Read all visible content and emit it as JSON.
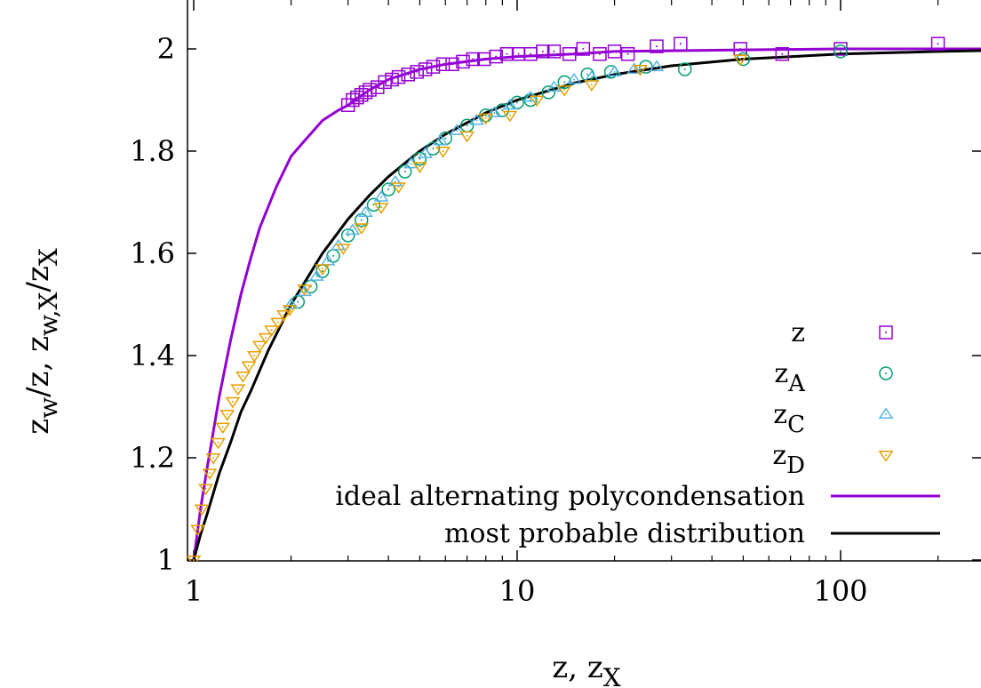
{
  "chart_data": {
    "type": "scatter",
    "title": "",
    "xlabel": {
      "main": "z, z",
      "sub": "X"
    },
    "ylabel": {
      "parts": [
        {
          "t": "z",
          "sub": "w"
        },
        {
          "t": "/z, z",
          "sub": "w,X"
        },
        {
          "t": "/z",
          "sub": "X"
        }
      ]
    },
    "x_scale": "log",
    "xlim": [
      1,
      300
    ],
    "ylim": [
      1,
      2.1
    ],
    "x_ticks": [
      {
        "value": 1,
        "label": "1"
      },
      {
        "value": 10,
        "label": "10"
      },
      {
        "value": 100,
        "label": "100"
      }
    ],
    "y_ticks": [
      {
        "value": 1,
        "label": "1"
      },
      {
        "value": 1.2,
        "label": "1.2"
      },
      {
        "value": 1.4,
        "label": "1.4"
      },
      {
        "value": 1.6,
        "label": "1.6"
      },
      {
        "value": 1.8,
        "label": "1.8"
      },
      {
        "value": 2,
        "label": "2"
      }
    ],
    "grid": false,
    "legend_position": "bottom-right",
    "series": [
      {
        "name": "z",
        "name_sub": "",
        "kind": "points",
        "marker": "square-dot",
        "color": "#9400d3",
        "x": [
          3,
          3.1,
          3.2,
          3.3,
          3.4,
          3.5,
          3.7,
          3.9,
          4.1,
          4.3,
          4.6,
          4.9,
          5.2,
          5.5,
          5.9,
          6.3,
          6.8,
          7.3,
          7.9,
          8.6,
          9.3,
          10.1,
          11,
          12,
          13,
          14.5,
          16,
          18,
          20,
          22,
          27,
          32,
          49,
          66,
          100,
          200
        ],
        "y": [
          1.89,
          1.9,
          1.905,
          1.91,
          1.915,
          1.92,
          1.925,
          1.935,
          1.94,
          1.945,
          1.95,
          1.955,
          1.96,
          1.965,
          1.97,
          1.97,
          1.975,
          1.98,
          1.98,
          1.985,
          1.99,
          1.99,
          1.99,
          1.995,
          1.995,
          1.99,
          2.0,
          1.99,
          1.995,
          1.99,
          2.005,
          2.01,
          2.0,
          1.99,
          2.0,
          2.01
        ]
      },
      {
        "name": "z",
        "name_sub": "A",
        "kind": "points",
        "marker": "circle-dot",
        "color": "#009e73",
        "x": [
          2.1,
          2.3,
          2.5,
          2.7,
          3.0,
          3.3,
          3.6,
          4.0,
          4.5,
          5.0,
          5.5,
          6.0,
          7.0,
          8.0,
          9.0,
          10,
          11,
          12.5,
          14,
          16.5,
          19.5,
          25,
          33,
          50,
          100
        ],
        "y": [
          1.505,
          1.535,
          1.565,
          1.595,
          1.635,
          1.665,
          1.695,
          1.725,
          1.76,
          1.785,
          1.805,
          1.825,
          1.85,
          1.87,
          1.88,
          1.895,
          1.9,
          1.915,
          1.935,
          1.95,
          1.955,
          1.965,
          1.96,
          1.98,
          1.995
        ]
      },
      {
        "name": "z",
        "name_sub": "C",
        "kind": "points",
        "marker": "triangle-up-dot",
        "color": "#56b4e9",
        "x": [
          2.0,
          2.2,
          2.4,
          2.6,
          2.8,
          3.1,
          3.4,
          3.8,
          4.2,
          4.7,
          5.2,
          5.8,
          6.5,
          7.5,
          8.5,
          9.5,
          11,
          13,
          15,
          17,
          20,
          23,
          27
        ],
        "y": [
          1.5,
          1.525,
          1.555,
          1.585,
          1.615,
          1.645,
          1.68,
          1.71,
          1.74,
          1.775,
          1.795,
          1.82,
          1.84,
          1.86,
          1.875,
          1.89,
          1.905,
          1.925,
          1.94,
          1.945,
          1.955,
          1.96,
          1.965
        ]
      },
      {
        "name": "z",
        "name_sub": "D",
        "kind": "points",
        "marker": "triangle-down-dot",
        "color": "#e69f00",
        "x": [
          1.0,
          1.03,
          1.06,
          1.09,
          1.12,
          1.15,
          1.19,
          1.23,
          1.27,
          1.32,
          1.37,
          1.42,
          1.48,
          1.54,
          1.6,
          1.67,
          1.74,
          1.82,
          1.9,
          1.98,
          2.2,
          2.5,
          2.9,
          3.3,
          3.8,
          4.3,
          5,
          5.9,
          7,
          8,
          9.5,
          11.5,
          14,
          17,
          24,
          49
        ],
        "y": [
          1.0,
          1.06,
          1.1,
          1.14,
          1.17,
          1.2,
          1.23,
          1.26,
          1.285,
          1.31,
          1.335,
          1.36,
          1.38,
          1.4,
          1.42,
          1.435,
          1.45,
          1.465,
          1.48,
          1.49,
          1.53,
          1.57,
          1.61,
          1.65,
          1.69,
          1.73,
          1.77,
          1.8,
          1.83,
          1.865,
          1.87,
          1.9,
          1.92,
          1.93,
          1.96,
          1.98
        ]
      },
      {
        "name": "ideal alternating polycondensation",
        "kind": "line",
        "color": "#9400d3",
        "x": [
          1,
          1.05,
          1.1,
          1.2,
          1.3,
          1.4,
          1.5,
          1.6,
          1.8,
          2,
          2.2,
          2.5,
          2.8,
          3,
          3.5,
          4,
          5,
          6,
          8,
          10,
          15,
          20,
          50,
          100,
          300
        ],
        "y": [
          1.0,
          1.1,
          1.18,
          1.32,
          1.43,
          1.52,
          1.59,
          1.65,
          1.73,
          1.79,
          1.82,
          1.86,
          1.88,
          1.89,
          1.92,
          1.94,
          1.96,
          1.97,
          1.98,
          1.985,
          1.99,
          1.995,
          1.998,
          2.0,
          2.0
        ]
      },
      {
        "name": "most probable distribution",
        "kind": "line",
        "color": "#000000",
        "x": [
          1,
          1.05,
          1.1,
          1.2,
          1.3,
          1.4,
          1.5,
          1.7,
          2,
          2.5,
          3,
          3.5,
          4,
          5,
          6,
          8,
          10,
          15,
          20,
          30,
          50,
          100,
          200,
          300
        ],
        "y": [
          1.0,
          1.05,
          1.09,
          1.17,
          1.23,
          1.29,
          1.33,
          1.41,
          1.5,
          1.6,
          1.667,
          1.714,
          1.75,
          1.8,
          1.833,
          1.875,
          1.9,
          1.933,
          1.95,
          1.967,
          1.98,
          1.99,
          1.995,
          1.997
        ]
      }
    ]
  }
}
